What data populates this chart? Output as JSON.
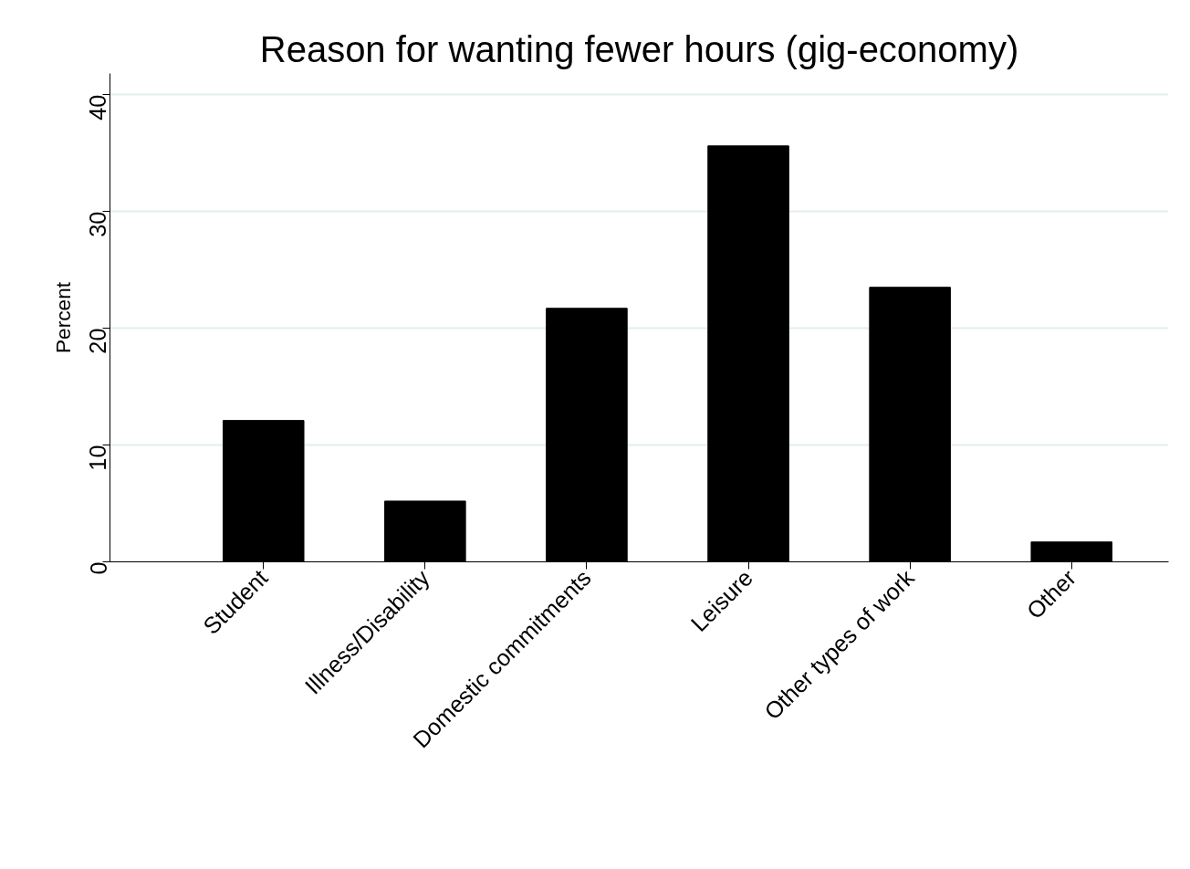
{
  "chart_data": {
    "type": "bar",
    "title": "Reason for wanting fewer hours (gig-economy)",
    "ylabel": "Percent",
    "categories": [
      "Student",
      "Illness/Disability",
      "Domestic commitments",
      "Leisure",
      "Other types of work",
      "Other"
    ],
    "values": [
      12.1,
      5.2,
      21.7,
      35.6,
      23.5,
      1.7
    ],
    "color": "#000000",
    "ylim": [
      0,
      41.8
    ],
    "yticks": [
      0,
      10,
      20,
      30,
      40
    ],
    "grid": "y"
  }
}
